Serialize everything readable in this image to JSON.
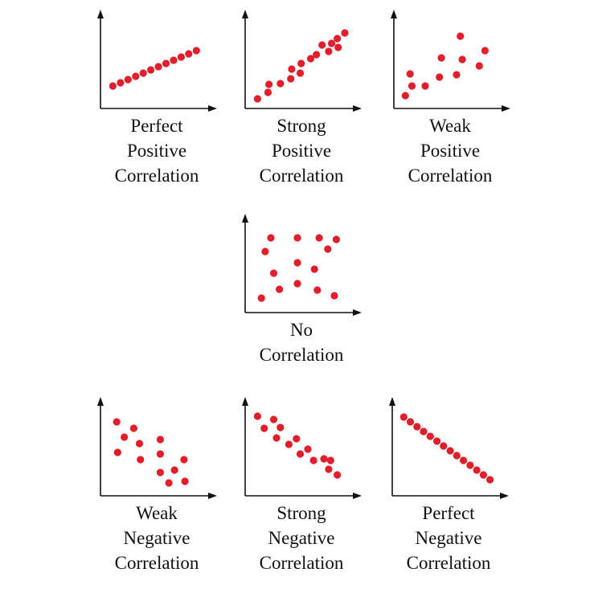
{
  "colors": {
    "point": "#e21e2b",
    "axis": "#111111",
    "text": "#111111"
  },
  "chart_data": [
    {
      "type": "scatter",
      "caption": [
        "Perfect",
        "Positive",
        "Correlation"
      ],
      "xlim": [
        0,
        10
      ],
      "ylim": [
        0,
        10
      ],
      "points": [
        [
          0.8,
          2.2
        ],
        [
          1.6,
          2.6
        ],
        [
          2.4,
          3.0
        ],
        [
          3.2,
          3.4
        ],
        [
          4.0,
          3.8
        ],
        [
          4.8,
          4.2
        ],
        [
          5.6,
          4.6
        ],
        [
          6.4,
          5.0
        ],
        [
          7.2,
          5.4
        ],
        [
          8.0,
          5.8
        ],
        [
          8.8,
          6.2
        ],
        [
          9.6,
          6.6
        ]
      ]
    },
    {
      "type": "scatter",
      "caption": [
        "Strong",
        "Positive",
        "Correlation"
      ],
      "xlim": [
        0,
        10
      ],
      "ylim": [
        0,
        10
      ],
      "points": [
        [
          0.8,
          0.6
        ],
        [
          1.9,
          1.4
        ],
        [
          2.0,
          2.4
        ],
        [
          3.2,
          2.5
        ],
        [
          4.3,
          3.1
        ],
        [
          4.4,
          4.3
        ],
        [
          5.3,
          3.8
        ],
        [
          5.4,
          5.0
        ],
        [
          6.4,
          5.6
        ],
        [
          7.0,
          6.1
        ],
        [
          7.6,
          7.3
        ],
        [
          8.3,
          6.5
        ],
        [
          8.6,
          7.5
        ],
        [
          9.2,
          8.1
        ],
        [
          9.3,
          7.0
        ],
        [
          10.0,
          8.8
        ]
      ]
    },
    {
      "type": "scatter",
      "caption": [
        "Weak",
        "Positive",
        "Correlation"
      ],
      "xlim": [
        0,
        10
      ],
      "ylim": [
        0,
        10
      ],
      "points": [
        [
          0.7,
          1.0
        ],
        [
          1.2,
          3.7
        ],
        [
          1.4,
          2.2
        ],
        [
          2.8,
          2.2
        ],
        [
          4.3,
          3.3
        ],
        [
          4.5,
          5.7
        ],
        [
          6.1,
          3.6
        ],
        [
          6.5,
          8.4
        ],
        [
          6.7,
          5.5
        ],
        [
          8.5,
          4.7
        ],
        [
          9.1,
          6.6
        ]
      ]
    },
    {
      "type": "scatter",
      "caption": [
        "No",
        "Correlation"
      ],
      "xlim": [
        0,
        10
      ],
      "ylim": [
        0,
        10
      ],
      "points": [
        [
          1.2,
          1.2
        ],
        [
          1.6,
          7.0
        ],
        [
          2.2,
          8.7
        ],
        [
          2.5,
          4.3
        ],
        [
          3.1,
          2.3
        ],
        [
          5.0,
          8.7
        ],
        [
          5.0,
          5.6
        ],
        [
          5.0,
          3.0
        ],
        [
          6.8,
          4.8
        ],
        [
          7.1,
          2.2
        ],
        [
          7.3,
          8.7
        ],
        [
          8.2,
          7.3
        ],
        [
          8.9,
          1.5
        ],
        [
          9.1,
          8.5
        ]
      ]
    },
    {
      "type": "scatter",
      "caption": [
        "Weak",
        "Negative",
        "Correlation"
      ],
      "xlim": [
        0,
        10
      ],
      "ylim": [
        0,
        10
      ],
      "points": [
        [
          1.2,
          8.6
        ],
        [
          1.3,
          4.8
        ],
        [
          2.0,
          6.7
        ],
        [
          3.0,
          7.8
        ],
        [
          3.6,
          5.9
        ],
        [
          3.7,
          3.9
        ],
        [
          5.8,
          6.4
        ],
        [
          5.8,
          4.6
        ],
        [
          5.8,
          2.3
        ],
        [
          6.7,
          1.0
        ],
        [
          7.3,
          2.6
        ],
        [
          8.3,
          3.9
        ],
        [
          8.4,
          1.2
        ]
      ]
    },
    {
      "type": "scatter",
      "caption": [
        "Strong",
        "Negative",
        "Correlation"
      ],
      "xlim": [
        0,
        10
      ],
      "ylim": [
        0,
        10
      ],
      "points": [
        [
          0.8,
          9.3
        ],
        [
          1.5,
          7.8
        ],
        [
          2.5,
          8.9
        ],
        [
          2.8,
          6.6
        ],
        [
          3.2,
          7.9
        ],
        [
          4.1,
          5.8
        ],
        [
          4.9,
          6.5
        ],
        [
          5.3,
          4.6
        ],
        [
          6.1,
          5.2
        ],
        [
          6.7,
          3.8
        ],
        [
          7.8,
          4.0
        ],
        [
          8.3,
          2.7
        ],
        [
          8.5,
          3.8
        ],
        [
          9.2,
          2.0
        ]
      ]
    },
    {
      "type": "scatter",
      "caption": [
        "Perfect",
        "Negative",
        "Correlation"
      ],
      "xlim": [
        0,
        10
      ],
      "ylim": [
        0,
        10
      ],
      "points": [
        [
          0.7,
          9.2
        ],
        [
          1.4,
          8.6
        ],
        [
          2.1,
          8.0
        ],
        [
          2.8,
          7.4
        ],
        [
          3.5,
          6.8
        ],
        [
          4.2,
          6.2
        ],
        [
          4.9,
          5.6
        ],
        [
          5.6,
          5.0
        ],
        [
          6.3,
          4.4
        ],
        [
          7.0,
          3.8
        ],
        [
          7.7,
          3.2
        ],
        [
          8.4,
          2.6
        ],
        [
          9.1,
          2.0
        ],
        [
          9.8,
          1.4
        ]
      ]
    }
  ]
}
